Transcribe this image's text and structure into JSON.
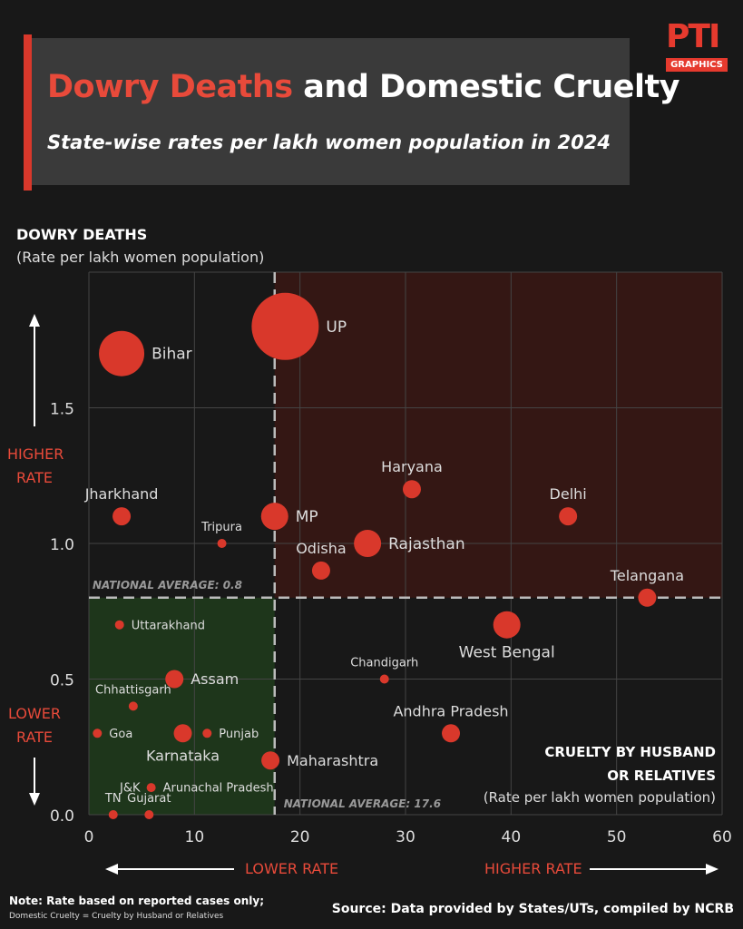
{
  "title": {
    "highlight": "Dowry Deaths",
    "rest": " and Domestic Cruelty"
  },
  "subtitle": "State-wise rates per lakh women population in 2024",
  "logo": {
    "text": "PTI",
    "sub": "GRAPHICS"
  },
  "y_axis": {
    "title": "DOWRY DEATHS",
    "subtitle": "(Rate per lakh women population)",
    "higher_label_1": "HIGHER",
    "higher_label_2": "RATE",
    "lower_label_1": "LOWER",
    "lower_label_2": "RATE"
  },
  "x_axis": {
    "title_1": "CRUELTY BY HUSBAND",
    "title_2": "OR RELATIVES",
    "subtitle": "(Rate per lakh women population)",
    "lower_label": "LOWER RATE",
    "higher_label": "HIGHER RATE"
  },
  "note": "Note: Rate based on reported cases only;",
  "note2": "Domestic Cruelty = Cruelty by Husband or Relatives",
  "source": "Source: Data provided by States/UTs, compiled by NCRB",
  "colors": {
    "accent": "#e84a3a",
    "dot": "#d9382b",
    "high_quadrant": "#3a1814",
    "low_quadrant": "#1f3a1c"
  },
  "chart_data": {
    "type": "scatter",
    "title": "Dowry Deaths and Domestic Cruelty",
    "xlabel": "CRUELTY BY HUSBAND OR RELATIVES (Rate per lakh women population)",
    "ylabel": "DOWRY DEATHS (Rate per lakh women population)",
    "xlim": [
      0,
      60
    ],
    "ylim": [
      0,
      2.0
    ],
    "x_ticks": [
      0,
      10,
      20,
      30,
      40,
      50,
      60
    ],
    "y_ticks": [
      "0.0",
      "0.5",
      "1.0",
      "1.5"
    ],
    "y_tick_values": [
      0,
      0.5,
      1.0,
      1.5
    ],
    "grid": true,
    "national_average": {
      "x": 17.6,
      "y": 0.8,
      "x_label": "NATIONAL AVERAGE: 17.6",
      "y_label": "NATIONAL AVERAGE: 0.8"
    },
    "points": [
      {
        "name": "UP",
        "x": 18.6,
        "y": 1.8,
        "size": "largest",
        "label_pos": "right"
      },
      {
        "name": "Bihar",
        "x": 3.1,
        "y": 1.7,
        "size": "large",
        "label_pos": "right"
      },
      {
        "name": "Haryana",
        "x": 30.6,
        "y": 1.2,
        "size": "small",
        "label_pos": "top"
      },
      {
        "name": "Jharkhand",
        "x": 3.1,
        "y": 1.1,
        "size": "small",
        "label_pos": "top"
      },
      {
        "name": "MP",
        "x": 17.6,
        "y": 1.1,
        "size": "medium",
        "label_pos": "right"
      },
      {
        "name": "Delhi",
        "x": 45.4,
        "y": 1.1,
        "size": "small",
        "label_pos": "top"
      },
      {
        "name": "Tripura",
        "x": 12.6,
        "y": 1.0,
        "size": "tiny",
        "label_pos": "top"
      },
      {
        "name": "Rajasthan",
        "x": 26.4,
        "y": 1.0,
        "size": "medium",
        "label_pos": "right"
      },
      {
        "name": "Odisha",
        "x": 22.0,
        "y": 0.9,
        "size": "small",
        "label_pos": "top"
      },
      {
        "name": "Telangana",
        "x": 52.9,
        "y": 0.8,
        "size": "small",
        "label_pos": "top"
      },
      {
        "name": "West Bengal",
        "x": 39.6,
        "y": 0.7,
        "size": "medium",
        "label_pos": "bottom"
      },
      {
        "name": "Uttarakhand",
        "x": 2.9,
        "y": 0.7,
        "size": "tiny",
        "label_pos": "right"
      },
      {
        "name": "Chandigarh",
        "x": 28.0,
        "y": 0.5,
        "size": "tiny",
        "label_pos": "top"
      },
      {
        "name": "Assam",
        "x": 8.1,
        "y": 0.5,
        "size": "small",
        "label_pos": "right"
      },
      {
        "name": "Chhattisgarh",
        "x": 4.2,
        "y": 0.4,
        "size": "tiny",
        "label_pos": "top"
      },
      {
        "name": "Goa",
        "x": 0.8,
        "y": 0.3,
        "size": "tiny",
        "label_pos": "right"
      },
      {
        "name": "Karnataka",
        "x": 8.9,
        "y": 0.3,
        "size": "small",
        "label_pos": "bottom"
      },
      {
        "name": "Punjab",
        "x": 11.2,
        "y": 0.3,
        "size": "tiny",
        "label_pos": "right"
      },
      {
        "name": "Andhra Pradesh",
        "x": 34.3,
        "y": 0.3,
        "size": "small",
        "label_pos": "top"
      },
      {
        "name": "Maharashtra",
        "x": 17.2,
        "y": 0.2,
        "size": "small",
        "label_pos": "right"
      },
      {
        "name": "J&K",
        "x": 5.2,
        "y": 0.1,
        "size": "none",
        "label_pos": "left"
      },
      {
        "name": "Arunachal Pradesh",
        "x": 5.9,
        "y": 0.1,
        "size": "tiny",
        "label_pos": "right"
      },
      {
        "name": "TN",
        "x": 2.3,
        "y": 0.0,
        "size": "tiny",
        "label_pos": "top"
      },
      {
        "name": "Gujarat",
        "x": 5.7,
        "y": 0.0,
        "size": "tiny",
        "label_pos": "top"
      }
    ]
  }
}
